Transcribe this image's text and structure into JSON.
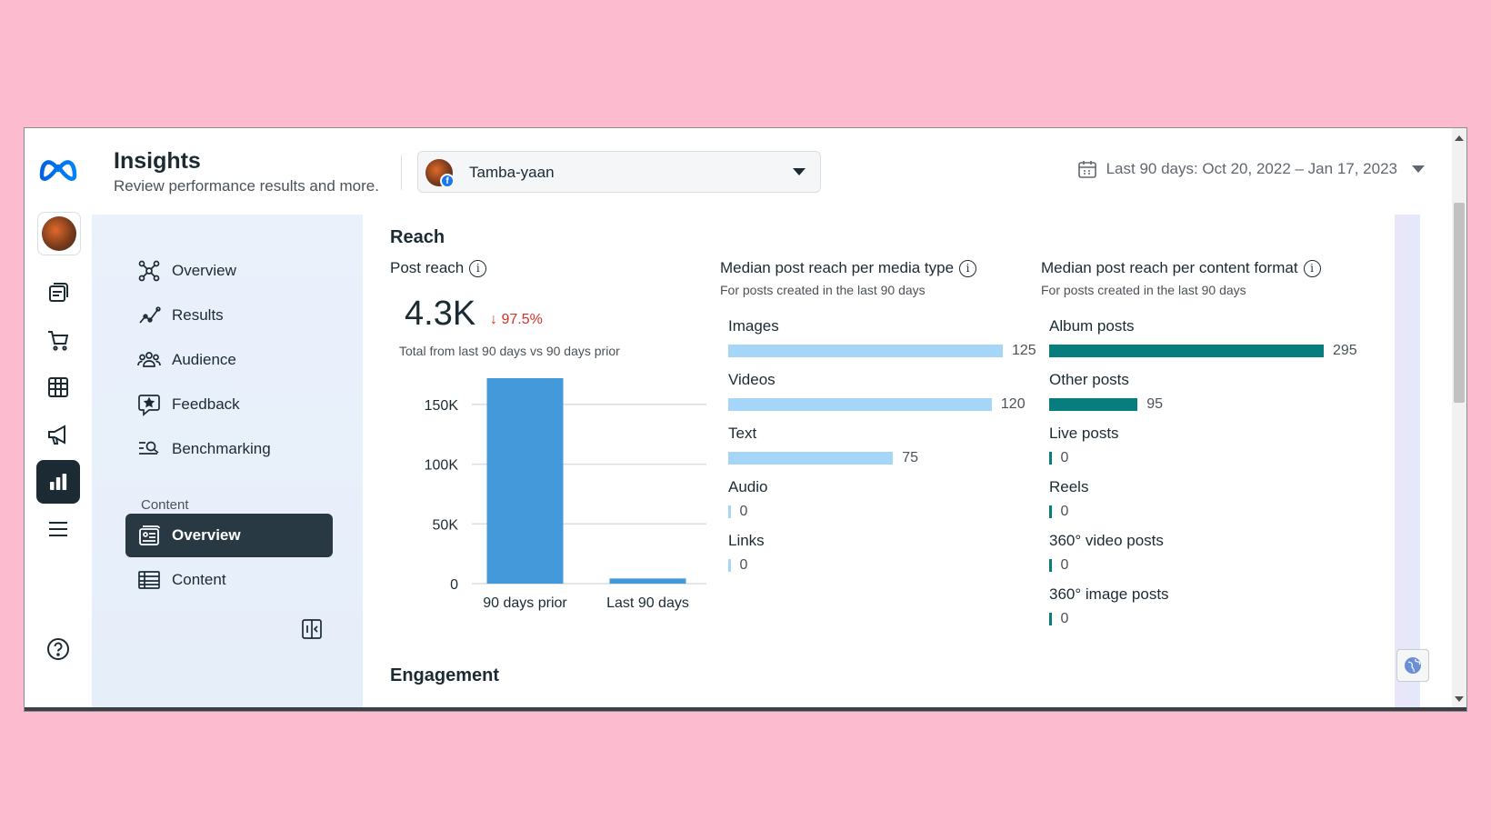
{
  "header": {
    "title": "Insights",
    "subtitle": "Review performance results and more.",
    "account_name": "Tamba-yaan",
    "date_range": "Last 90 days: Oct 20, 2022 – Jan 17, 2023"
  },
  "rail": {
    "icons": [
      "meta-logo",
      "page-avatar",
      "posts-icon",
      "shopping-cart-icon",
      "table-icon",
      "megaphone-icon",
      "insights-chart-icon",
      "menu-icon",
      "help-icon"
    ],
    "active": "insights-chart-icon"
  },
  "sidenav": {
    "items": [
      {
        "label": "Overview",
        "icon": "network-icon"
      },
      {
        "label": "Results",
        "icon": "trend-icon"
      },
      {
        "label": "Audience",
        "icon": "people-icon"
      },
      {
        "label": "Feedback",
        "icon": "feedback-icon"
      },
      {
        "label": "Benchmarking",
        "icon": "benchmark-icon"
      }
    ],
    "section_label": "Content",
    "content_items": [
      {
        "label": "Overview",
        "icon": "content-overview-icon",
        "active": true
      },
      {
        "label": "Content",
        "icon": "table-icon"
      }
    ]
  },
  "reach": {
    "title": "Reach",
    "post_reach": {
      "title": "Post reach",
      "value": "4.3K",
      "change": "↓ 97.5%",
      "note": "Total from last 90 days vs 90 days prior"
    },
    "media_type": {
      "title": "Median post reach per media type",
      "subtitle": "For posts created in the last 90 days",
      "color": "#a5d6f7"
    },
    "content_format": {
      "title": "Median post reach per content format",
      "subtitle": "For posts created in the last 90 days",
      "color": "#087d7d"
    }
  },
  "engagement": {
    "title": "Engagement"
  },
  "chart_data": [
    {
      "type": "bar",
      "categories": [
        "90 days prior",
        "Last 90 days"
      ],
      "values": [
        172000,
        4300
      ],
      "ylim": [
        0,
        172000
      ],
      "yticks": [
        0,
        50000,
        100000,
        150000
      ],
      "ytick_labels": [
        "0",
        "50K",
        "100K",
        "150K"
      ],
      "grid": true,
      "color": "#4399da"
    },
    {
      "type": "bar",
      "orientation": "horizontal",
      "categories": [
        "Images",
        "Videos",
        "Text",
        "Audio",
        "Links"
      ],
      "values": [
        125,
        120,
        75,
        0,
        0
      ]
    },
    {
      "type": "bar",
      "orientation": "horizontal",
      "categories": [
        "Album posts",
        "Other posts",
        "Live posts",
        "Reels",
        "360° video posts",
        "360° image posts"
      ],
      "values": [
        295,
        95,
        0,
        0,
        0,
        0
      ]
    }
  ]
}
